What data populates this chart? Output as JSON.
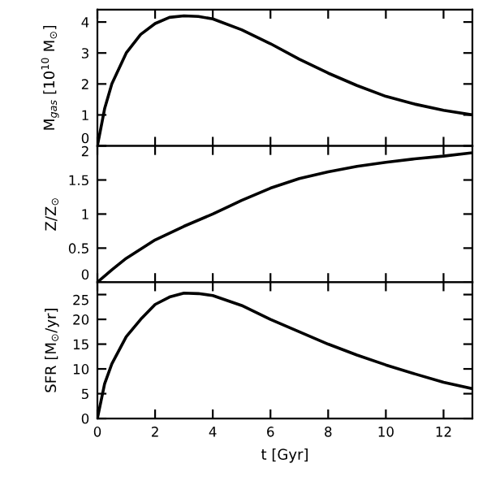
{
  "chart_data": [
    {
      "type": "line",
      "ylabel": "M$_{gas}$ [10$^{10}$ M$_{⊙}$]",
      "x": [
        0,
        0.25,
        0.5,
        1,
        1.5,
        2,
        2.5,
        3,
        3.5,
        4,
        5,
        6,
        7,
        8,
        9,
        10,
        11,
        12,
        13
      ],
      "series": [
        {
          "color": "#000000",
          "values": [
            0,
            1.2,
            2.0,
            3.0,
            3.6,
            3.95,
            4.15,
            4.2,
            4.18,
            4.1,
            3.75,
            3.3,
            2.8,
            2.35,
            1.95,
            1.6,
            1.35,
            1.15,
            1.0
          ]
        }
      ],
      "xlim": [
        0,
        13
      ],
      "xticks": [
        0,
        2,
        4,
        6,
        8,
        10,
        12
      ],
      "ylim": [
        0,
        4.4
      ],
      "yticks": [
        0,
        1,
        2,
        3,
        4
      ],
      "tick_labels": "y",
      "grid": false,
      "legend": false
    },
    {
      "type": "line",
      "ylabel": "Z/Z$_{⊙}$",
      "x": [
        0,
        0.5,
        1,
        2,
        3,
        4,
        5,
        6,
        7,
        8,
        9,
        10,
        11,
        12,
        13
      ],
      "series": [
        {
          "color": "#000000",
          "values": [
            0,
            0.18,
            0.35,
            0.62,
            0.82,
            1.0,
            1.2,
            1.38,
            1.52,
            1.62,
            1.7,
            1.76,
            1.81,
            1.85,
            1.9
          ]
        }
      ],
      "xlim": [
        0,
        13
      ],
      "xticks": [
        0,
        2,
        4,
        6,
        8,
        10,
        12
      ],
      "ylim": [
        0,
        2
      ],
      "yticks": [
        0,
        0.5,
        1,
        1.5,
        2
      ],
      "tick_labels": "y",
      "grid": false,
      "legend": false
    },
    {
      "type": "line",
      "xlabel": "t [Gyr]",
      "ylabel": "SFR [M$_{⊙}$/yr]",
      "x": [
        0,
        0.25,
        0.5,
        1,
        1.5,
        2,
        2.5,
        3,
        3.5,
        4,
        5,
        6,
        7,
        8,
        9,
        10,
        11,
        12,
        13
      ],
      "series": [
        {
          "color": "#000000",
          "values": [
            0,
            7,
            11,
            16.5,
            20,
            23,
            24.5,
            25.3,
            25.2,
            24.8,
            22.8,
            20,
            17.5,
            15,
            12.8,
            10.8,
            9,
            7.3,
            6
          ]
        }
      ],
      "xlim": [
        0,
        13
      ],
      "xticks": [
        0,
        2,
        4,
        6,
        8,
        10,
        12
      ],
      "ylim": [
        0,
        27.5
      ],
      "yticks": [
        0,
        5,
        10,
        15,
        20,
        25
      ],
      "grid": false,
      "legend": false
    }
  ]
}
